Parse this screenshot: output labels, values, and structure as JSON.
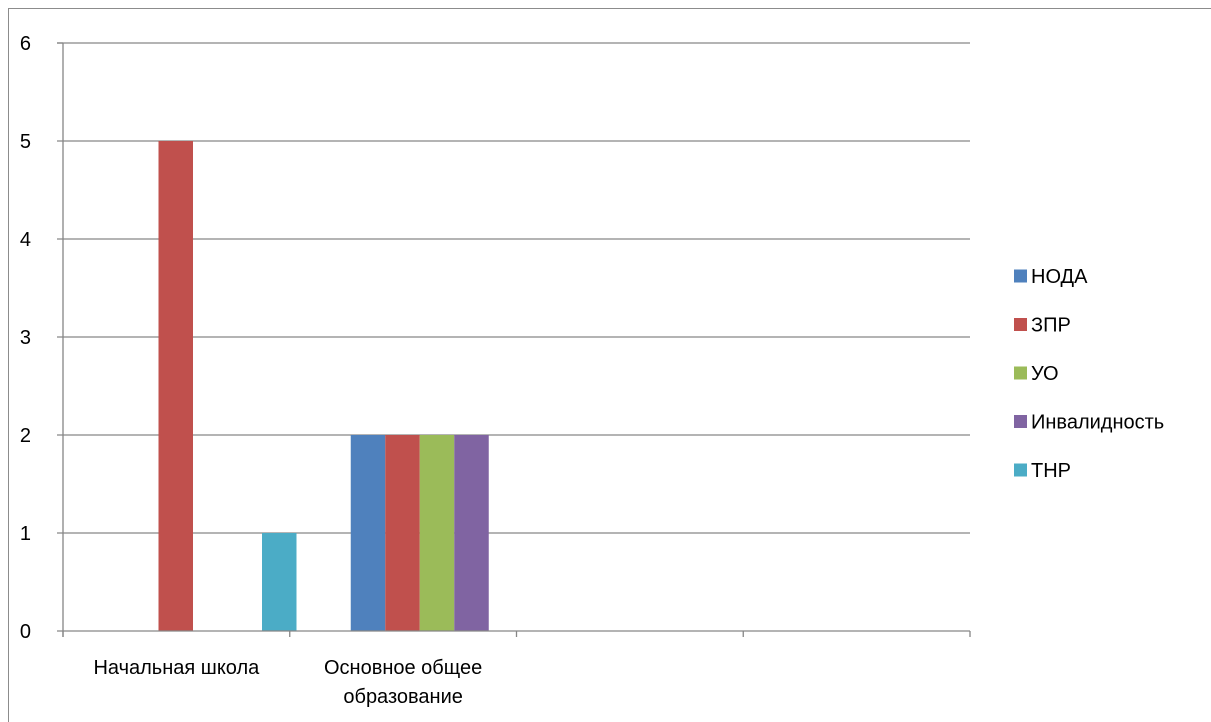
{
  "chart_data": {
    "type": "bar",
    "categories": [
      [
        "Начальная школа"
      ],
      [
        "Основное общее",
        "образование"
      ],
      [
        ""
      ],
      [
        ""
      ]
    ],
    "series": [
      {
        "name": "НОДА",
        "color": "#4f81bd",
        "values": [
          0,
          2,
          0,
          0
        ]
      },
      {
        "name": "ЗПР",
        "color": "#c0504d",
        "values": [
          5,
          2,
          0,
          0
        ]
      },
      {
        "name": "УО",
        "color": "#9bbb59",
        "values": [
          0,
          2,
          0,
          0
        ]
      },
      {
        "name": "Инвалидность",
        "color": "#8064a2",
        "values": [
          0,
          2,
          0,
          0
        ]
      },
      {
        "name": "ТНР",
        "color": "#4bacc6",
        "values": [
          1,
          0,
          0,
          0
        ]
      }
    ],
    "ylim": [
      0,
      6
    ],
    "yticks": [
      "0",
      "1",
      "2",
      "3",
      "4",
      "5",
      "6"
    ],
    "grid": true,
    "legend_position": "right",
    "title": "",
    "xlabel": "",
    "ylabel": ""
  }
}
